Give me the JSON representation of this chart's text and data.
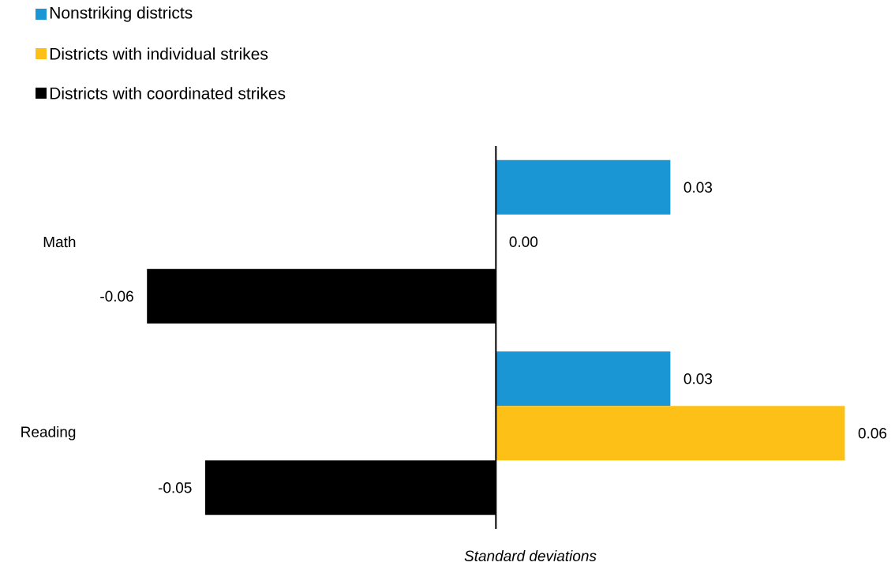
{
  "chart_data": {
    "type": "bar",
    "orientation": "horizontal",
    "categories": [
      "Math",
      "Reading"
    ],
    "xlabel": "Standard deviations",
    "legend": "top left",
    "series": [
      {
        "name": "Nonstriking districts",
        "color": "#1a96d4",
        "values": [
          0.03,
          0.03
        ],
        "value_labels": [
          "0.03",
          "0.03"
        ]
      },
      {
        "name": "Districts with individual strikes",
        "color": "#fcc016",
        "values": [
          0.0,
          0.06
        ],
        "value_labels": [
          "0.00",
          "0.06"
        ]
      },
      {
        "name": "Districts with coordinated strikes",
        "color": "#000000",
        "values": [
          -0.06,
          -0.05
        ],
        "value_labels": [
          "-0.06",
          "-0.05"
        ]
      }
    ]
  }
}
